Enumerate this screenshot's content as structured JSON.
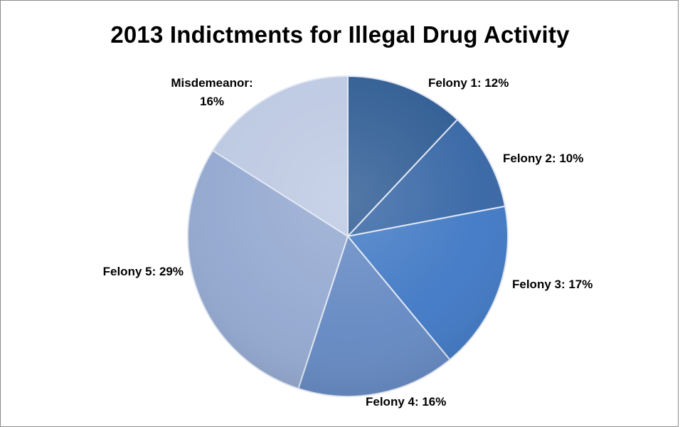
{
  "chart_data": {
    "type": "pie",
    "title": "2013 Indictments for Illegal Drug Activity",
    "slices": [
      {
        "name": "Felony 1",
        "value": 12,
        "label": "Felony 1: 12%",
        "color": "#2c5a92"
      },
      {
        "name": "Felony 2",
        "value": 10,
        "label": "Felony 2: 10%",
        "color": "#3565a4"
      },
      {
        "name": "Felony 3",
        "value": 17,
        "label": "Felony 3: 17%",
        "color": "#3f78c4"
      },
      {
        "name": "Felony 4",
        "value": 16,
        "label": "Felony 4: 16%",
        "color": "#6388c2"
      },
      {
        "name": "Felony 5",
        "value": 29,
        "label": "Felony 5: 29%",
        "color": "#93a8d0"
      },
      {
        "name": "Misdemeanor",
        "value": 16,
        "label_lines": [
          "Misdemeanor:",
          "16%"
        ],
        "color": "#bcc8e2"
      }
    ]
  }
}
